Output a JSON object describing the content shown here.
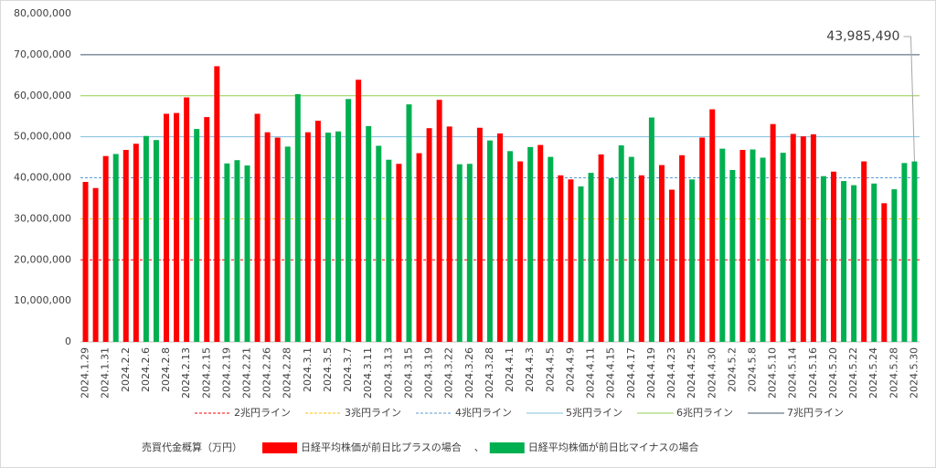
{
  "chart_data": {
    "type": "bar",
    "ylabel": "売買代金概算（万円）",
    "legend_separator": "、",
    "categories": [
      "2024.1.29",
      null,
      "2024.1.31",
      null,
      "2024.2.2",
      null,
      "2024.2.6",
      null,
      "2024.2.8",
      null,
      "2024.2.13",
      null,
      "2024.2.15",
      null,
      "2024.2.19",
      null,
      "2024.2.21",
      null,
      "2024.2.26",
      null,
      "2024.2.28",
      null,
      "2024.3.1",
      null,
      "2024.3.5",
      null,
      "2024.3.7",
      null,
      "2024.3.11",
      null,
      "2024.3.13",
      null,
      "2024.3.15",
      null,
      "2024.3.19",
      null,
      "2024.3.22",
      null,
      "2024.3.26",
      null,
      "2024.3.28",
      null,
      "2024.4.1",
      null,
      "2024.4.3",
      null,
      "2024.4.5",
      null,
      "2024.4.9",
      null,
      "2024.4.11",
      null,
      "2024.4.15",
      null,
      "2024.4.17",
      null,
      "2024.4.19",
      null,
      "2024.4.23",
      null,
      "2024.4.25",
      null,
      "2024.4.30",
      null,
      "2024.5.2",
      null,
      "2024.5.8",
      null,
      "2024.5.10",
      null,
      "2024.5.14",
      null,
      "2024.5.16",
      null,
      "2024.5.20",
      null,
      "2024.5.22",
      null,
      "2024.5.24",
      null,
      "2024.5.28",
      null,
      "2024.5.30"
    ],
    "series": [
      {
        "name": "日経平均株価が前日比プラスの場合",
        "color": "#ff0000",
        "values": [
          39000000,
          37500000,
          45300000,
          null,
          46800000,
          48300000,
          null,
          null,
          55600000,
          55800000,
          59600000,
          null,
          54800000,
          67200000,
          null,
          null,
          null,
          55600000,
          51100000,
          49800000,
          null,
          null,
          51100000,
          53900000,
          null,
          null,
          null,
          63900000,
          null,
          null,
          null,
          43400000,
          null,
          46000000,
          52100000,
          59000000,
          52500000,
          null,
          null,
          52200000,
          null,
          50800000,
          null,
          44000000,
          null,
          48000000,
          null,
          40600000,
          39600000,
          null,
          null,
          45700000,
          null,
          null,
          null,
          40600000,
          null,
          43100000,
          37100000,
          45500000,
          null,
          49800000,
          56700000,
          null,
          null,
          46800000,
          null,
          null,
          53100000,
          null,
          50700000,
          50100000,
          50600000,
          null,
          41500000,
          null,
          null,
          44000000,
          null,
          33800000,
          null,
          null,
          null
        ]
      },
      {
        "name": "日経平均株価が前日比マイナスの場合",
        "color": "#00b050",
        "values": [
          null,
          null,
          null,
          45800000,
          null,
          null,
          50200000,
          49200000,
          null,
          null,
          null,
          51900000,
          null,
          null,
          43500000,
          44300000,
          43000000,
          null,
          null,
          null,
          47600000,
          60400000,
          null,
          null,
          51000000,
          51300000,
          59200000,
          null,
          52600000,
          47800000,
          44400000,
          null,
          57900000,
          null,
          null,
          null,
          null,
          43300000,
          43400000,
          null,
          49100000,
          null,
          46500000,
          null,
          47500000,
          null,
          45100000,
          null,
          null,
          37900000,
          41200000,
          null,
          39900000,
          47900000,
          45100000,
          null,
          54700000,
          null,
          null,
          null,
          39600000,
          null,
          null,
          47100000,
          41900000,
          null,
          46900000,
          44900000,
          null,
          46100000,
          null,
          null,
          null,
          40400000,
          null,
          39200000,
          38200000,
          null,
          38600000,
          null,
          37200000,
          43600000,
          43985490
        ],
        "value_labels": [
          null,
          null,
          null,
          null,
          null,
          null,
          null,
          null,
          null,
          null,
          null,
          null,
          null,
          null,
          null,
          null,
          null,
          null,
          null,
          null,
          null,
          null,
          null,
          null,
          null,
          null,
          null,
          null,
          null,
          null,
          null,
          null,
          null,
          null,
          null,
          null,
          null,
          null,
          null,
          null,
          null,
          null,
          null,
          null,
          null,
          null,
          null,
          null,
          null,
          null,
          null,
          null,
          null,
          null,
          null,
          null,
          null,
          null,
          null,
          null,
          null,
          null,
          null,
          null,
          null,
          null,
          null,
          null,
          null,
          null,
          null,
          null,
          null,
          null,
          null,
          null,
          null,
          null,
          null,
          null,
          null,
          null,
          "43,985,490"
        ]
      }
    ],
    "reference_lines": [
      {
        "name": "2兆円ライン",
        "value": 20000000,
        "color": "#ff0000",
        "dashed": true
      },
      {
        "name": "3兆円ライン",
        "value": 30000000,
        "color": "#ffc000",
        "dashed": true
      },
      {
        "name": "4兆円ライン",
        "value": 40000000,
        "color": "#5b9bd5",
        "dashed": true
      },
      {
        "name": "5兆円ライン",
        "value": 50000000,
        "color": "#7fbfdf",
        "dashed": false
      },
      {
        "name": "6兆円ライン",
        "value": 60000000,
        "color": "#92d050",
        "dashed": false
      },
      {
        "name": "7兆円ライン",
        "value": 70000000,
        "color": "#44546a",
        "dashed": false
      }
    ],
    "ylim": [
      0,
      80000000
    ],
    "yticks": [
      0,
      {
        "value": 10000000,
        "label": "10,000,000"
      },
      {
        "value": 20000000,
        "label": "20,000,000"
      },
      {
        "value": 30000000,
        "label": "30,000,000"
      },
      {
        "value": 40000000,
        "label": "40,000,000"
      },
      {
        "value": 50000000,
        "label": "50,000,000"
      },
      {
        "value": 60000000,
        "label": "60,000,000"
      },
      {
        "value": 70000000,
        "label": "70,000,000"
      },
      {
        "value": 80000000,
        "label": "80,000,000"
      }
    ],
    "grid": false
  }
}
